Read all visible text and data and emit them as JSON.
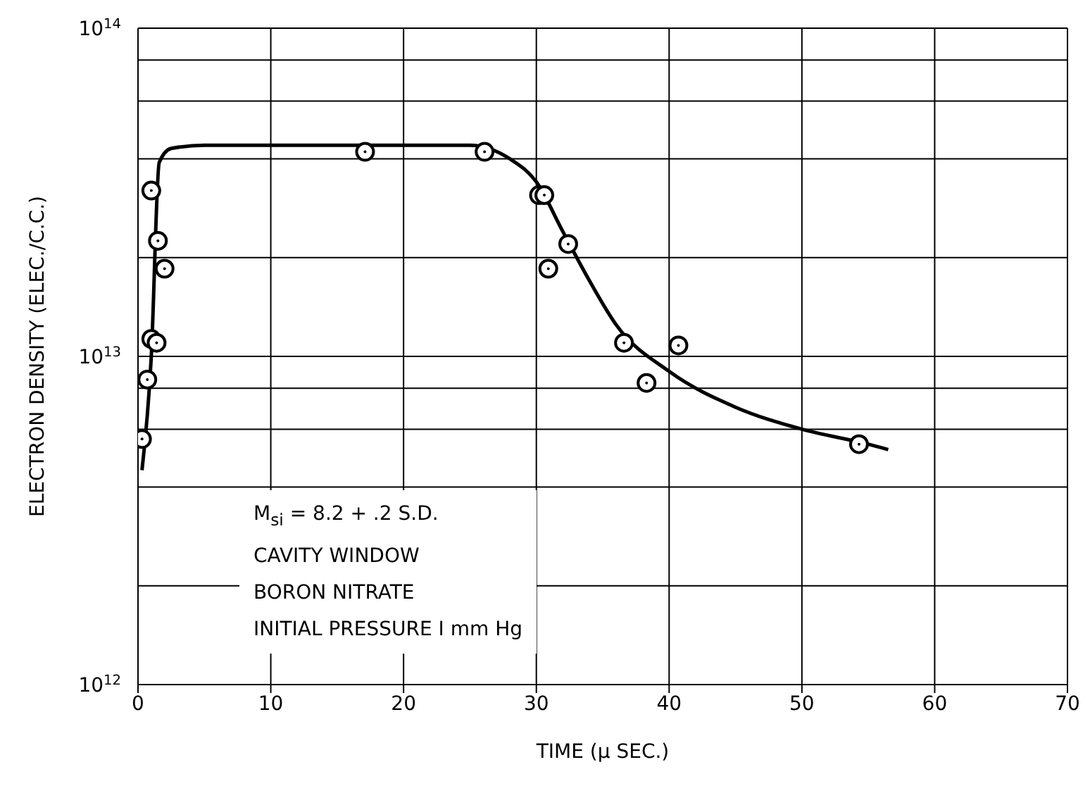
{
  "chart_data": {
    "type": "scatter",
    "xlabel": "TIME (μ SEC.)",
    "ylabel": "ELECTRON DENSITY (ELEC./C.C.)",
    "log": "y",
    "grid": true,
    "marker": "circle",
    "xlim": [
      0,
      70
    ],
    "xticks": [
      0,
      10,
      20,
      30,
      40,
      50,
      60,
      70
    ],
    "ylim": [
      1000000000000.0,
      100000000000000.0
    ],
    "yticks": [
      {
        "value": 1000000000000.0,
        "label": "10$^{12}$"
      },
      {
        "value": 2000000000000.0,
        "label": null
      },
      {
        "value": 4000000000000.0,
        "label": null
      },
      {
        "value": 6000000000000.0,
        "label": null
      },
      {
        "value": 8000000000000.0,
        "label": null
      },
      {
        "value": 10000000000000.0,
        "label": "10$^{13}$"
      },
      {
        "value": 20000000000000.0,
        "label": null
      },
      {
        "value": 40000000000000.0,
        "label": null
      },
      {
        "value": 60000000000000.0,
        "label": null
      },
      {
        "value": 80000000000000.0,
        "label": null
      },
      {
        "value": 100000000000000.0,
        "label": "10$^{14}$"
      }
    ],
    "series": [
      {
        "color": "#000000",
        "x": [
          0.3,
          0.7,
          1.0,
          1.4,
          1.0,
          1.5,
          2.0,
          17.1,
          26.1,
          30.2,
          30.6,
          32.4,
          30.9,
          36.6,
          40.7,
          38.3,
          54.3
        ],
        "values": [
          5600000000000.0,
          8500000000000.0,
          11300000000000.0,
          11000000000000.0,
          32000000000000.0,
          22500000000000.0,
          18500000000000.0,
          42000000000000.0,
          42000000000000.0,
          31000000000000.0,
          31000000000000.0,
          22000000000000.0,
          18500000000000.0,
          11000000000000.0,
          10800000000000.0,
          8300000000000.0,
          5400000000000.0
        ]
      },
      {
        "type": "line",
        "color": "#000000",
        "marker": "none",
        "x": [
          0.3,
          1.0,
          1.6,
          2.5,
          5,
          20,
          25,
          28,
          30,
          32,
          34,
          36,
          40,
          45,
          50,
          55,
          56.5
        ],
        "values": [
          4500000000000.0,
          10000000000000.0,
          39000000000000.0,
          43000000000000.0,
          44000000000000.0,
          44000000000000.0,
          44000000000000.0,
          40000000000000.0,
          34000000000000.0,
          24000000000000.0,
          17000000000000.0,
          12500000000000.0,
          9000000000000.0,
          7000000000000.0,
          6000000000000.0,
          5400000000000.0,
          5200000000000.0
        ]
      }
    ],
    "annotations": [
      "M$_{si}$ = 8.2 + .2 S.D.",
      "CAVITY WINDOW",
      "BORON NITRATE",
      "INITIAL PRESSURE I mm Hg"
    ]
  }
}
